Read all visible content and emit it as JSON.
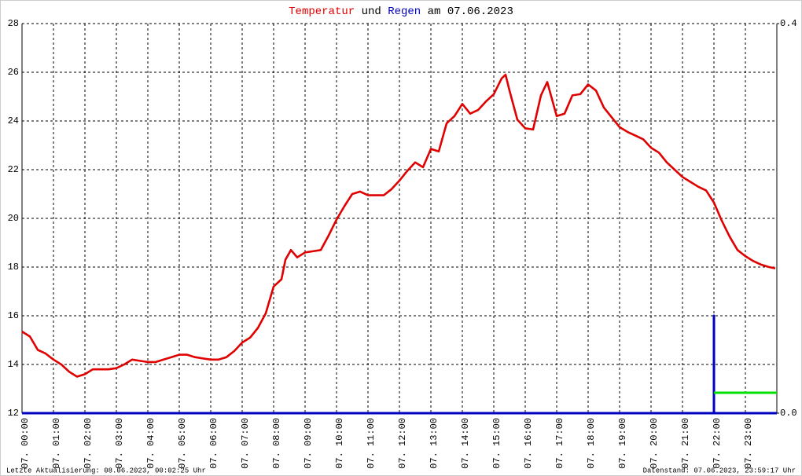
{
  "chart_data": {
    "type": "line",
    "title_words": [
      "und",
      "am 07.06.2023"
    ],
    "footer_left": "Letzte Aktualisierung: 08.06.2023, 00:02:25 Uhr",
    "footer_right": "Datenstand: 07.06.2023, 23:59:17 Uhr",
    "grid": true,
    "xlim": [
      0,
      24
    ],
    "xticks": [
      {
        "value": 0,
        "label": "07. 00:00"
      },
      {
        "value": 1,
        "label": "07. 01:00"
      },
      {
        "value": 2,
        "label": "07. 02:00"
      },
      {
        "value": 3,
        "label": "07. 03:00"
      },
      {
        "value": 4,
        "label": "07. 04:00"
      },
      {
        "value": 5,
        "label": "07. 05:00"
      },
      {
        "value": 6,
        "label": "07. 06:00"
      },
      {
        "value": 7,
        "label": "07. 07:00"
      },
      {
        "value": 8,
        "label": "07. 08:00"
      },
      {
        "value": 9,
        "label": "07. 09:00"
      },
      {
        "value": 10,
        "label": "07. 10:00"
      },
      {
        "value": 11,
        "label": "07. 11:00"
      },
      {
        "value": 12,
        "label": "07. 12:00"
      },
      {
        "value": 13,
        "label": "07. 13:00"
      },
      {
        "value": 14,
        "label": "07. 14:00"
      },
      {
        "value": 15,
        "label": "07. 15:00"
      },
      {
        "value": 16,
        "label": "07. 16:00"
      },
      {
        "value": 17,
        "label": "07. 17:00"
      },
      {
        "value": 18,
        "label": "07. 18:00"
      },
      {
        "value": 19,
        "label": "07. 19:00"
      },
      {
        "value": 20,
        "label": "07. 20:00"
      },
      {
        "value": 21,
        "label": "07. 21:00"
      },
      {
        "value": 22,
        "label": "07. 22:00"
      },
      {
        "value": 23,
        "label": "07. 23:00"
      }
    ],
    "ylim": [
      12,
      28
    ],
    "yticks": [
      12,
      14,
      16,
      18,
      20,
      22,
      24,
      26,
      28
    ],
    "y2lim": [
      0,
      0.4
    ],
    "y2ticks": [
      {
        "value": 0,
        "label": "0.0"
      },
      {
        "value": 0.4,
        "label": "0.4"
      }
    ],
    "series": [
      {
        "name": "Temperatur",
        "color": "#e00000",
        "x": [
          0,
          0.25,
          0.5,
          0.75,
          1,
          1.25,
          1.5,
          1.75,
          2,
          2.25,
          2.5,
          2.75,
          3,
          3.25,
          3.5,
          3.75,
          4,
          4.25,
          4.5,
          4.75,
          5,
          5.25,
          5.5,
          5.75,
          6,
          6.25,
          6.5,
          6.75,
          7,
          7.25,
          7.5,
          7.75,
          8,
          8.25,
          8.375,
          8.55,
          8.75,
          9,
          9.25,
          9.5,
          9.75,
          10,
          10.25,
          10.5,
          10.75,
          11,
          11.25,
          11.5,
          11.75,
          12,
          12.25,
          12.5,
          12.75,
          13,
          13.25,
          13.5,
          13.75,
          14,
          14.25,
          14.5,
          14.75,
          15,
          15.25,
          15.375,
          15.5,
          15.75,
          16,
          16.25,
          16.5,
          16.7,
          17,
          17.25,
          17.5,
          17.75,
          18,
          18.25,
          18.5,
          18.75,
          19,
          19.25,
          19.5,
          19.75,
          20,
          20.25,
          20.5,
          20.75,
          21,
          21.25,
          21.5,
          21.75,
          22,
          22.25,
          22.5,
          22.75,
          23,
          23.25,
          23.5,
          23.75,
          23.95
        ],
        "values": [
          15.35,
          15.15,
          14.6,
          14.45,
          14.2,
          14.0,
          13.7,
          13.5,
          13.6,
          13.8,
          13.8,
          13.8,
          13.85,
          14.0,
          14.2,
          14.15,
          14.1,
          14.1,
          14.2,
          14.3,
          14.4,
          14.4,
          14.3,
          14.25,
          14.2,
          14.2,
          14.3,
          14.55,
          14.9,
          15.1,
          15.5,
          16.1,
          17.2,
          17.5,
          18.3,
          18.7,
          18.4,
          18.6,
          18.65,
          18.7,
          19.3,
          19.95,
          20.5,
          21.0,
          21.1,
          20.95,
          20.95,
          20.95,
          21.2,
          21.55,
          21.95,
          22.3,
          22.1,
          22.85,
          22.75,
          23.9,
          24.2,
          24.7,
          24.3,
          24.45,
          24.8,
          25.1,
          25.75,
          25.9,
          25.25,
          24.05,
          23.7,
          23.65,
          25.05,
          25.6,
          24.2,
          24.3,
          25.05,
          25.1,
          25.5,
          25.25,
          24.55,
          24.15,
          23.75,
          23.55,
          23.4,
          23.25,
          22.9,
          22.7,
          22.3,
          22.0,
          21.7,
          21.5,
          21.3,
          21.15,
          20.65,
          19.9,
          19.25,
          18.7,
          18.45,
          18.25,
          18.1,
          18.0,
          17.95
        ]
      },
      {
        "name": "Regen",
        "color": "#0000c0",
        "axis": "y2",
        "x": [
          0,
          22,
          22,
          22,
          24
        ],
        "values": [
          0,
          0,
          0.1,
          0,
          0
        ]
      },
      {
        "color": "#00e000",
        "axis": "y2",
        "x": [
          22,
          24
        ],
        "values": [
          0.021,
          0.021
        ]
      }
    ]
  }
}
